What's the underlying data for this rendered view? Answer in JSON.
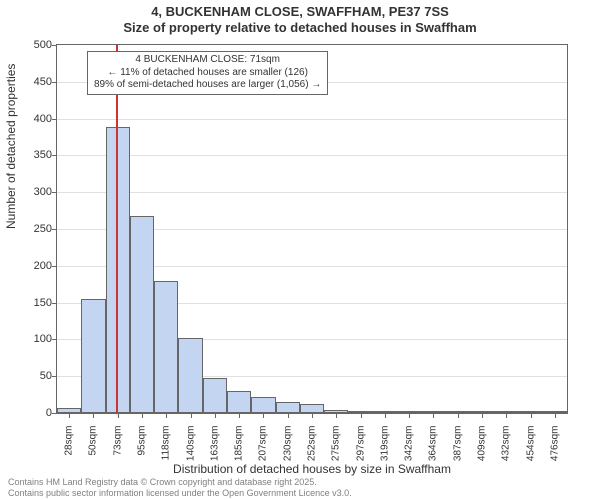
{
  "title": {
    "line1": "4, BUCKENHAM CLOSE, SWAFFHAM, PE37 7SS",
    "line2": "Size of property relative to detached houses in Swaffham",
    "fontsize": 13,
    "color": "#333333"
  },
  "histogram": {
    "type": "histogram",
    "categories": [
      "28sqm",
      "50sqm",
      "73sqm",
      "95sqm",
      "118sqm",
      "140sqm",
      "163sqm",
      "185sqm",
      "207sqm",
      "230sqm",
      "252sqm",
      "275sqm",
      "297sqm",
      "319sqm",
      "342sqm",
      "364sqm",
      "387sqm",
      "409sqm",
      "432sqm",
      "454sqm",
      "476sqm"
    ],
    "values": [
      7,
      155,
      388,
      268,
      180,
      102,
      47,
      30,
      22,
      15,
      12,
      4,
      3,
      2,
      2,
      1,
      1,
      1,
      1,
      1,
      1
    ],
    "bar_color": "#c4d5f2",
    "bar_border_color": "#666666",
    "bar_width": 1.0,
    "background_color": "#ffffff",
    "axis_color": "#666666",
    "grid_color": "#e0e0e0",
    "xlabel": "Distribution of detached houses by size in Swaffham",
    "ylabel": "Number of detached properties",
    "label_fontsize": 12,
    "tick_fontsize": 11,
    "xtick_fontsize": 10,
    "ylim": [
      0,
      500
    ],
    "yticks": [
      0,
      50,
      100,
      150,
      200,
      250,
      300,
      350,
      400,
      450,
      500
    ],
    "marker": {
      "position_sqm": 71,
      "color": "#cc3333",
      "width": 2
    },
    "annotation": {
      "line1": "4 BUCKENHAM CLOSE: 71sqm",
      "line2": "← 11% of detached houses are smaller (126)",
      "line3": "89% of semi-detached houses are larger (1,056) →",
      "fontsize": 10,
      "border_color": "#666666",
      "background": "#ffffff"
    }
  },
  "footer": {
    "line1": "Contains HM Land Registry data © Crown copyright and database right 2025.",
    "line2": "Contains public sector information licensed under the Open Government Licence v3.0.",
    "fontsize": 9,
    "color": "#808080"
  }
}
